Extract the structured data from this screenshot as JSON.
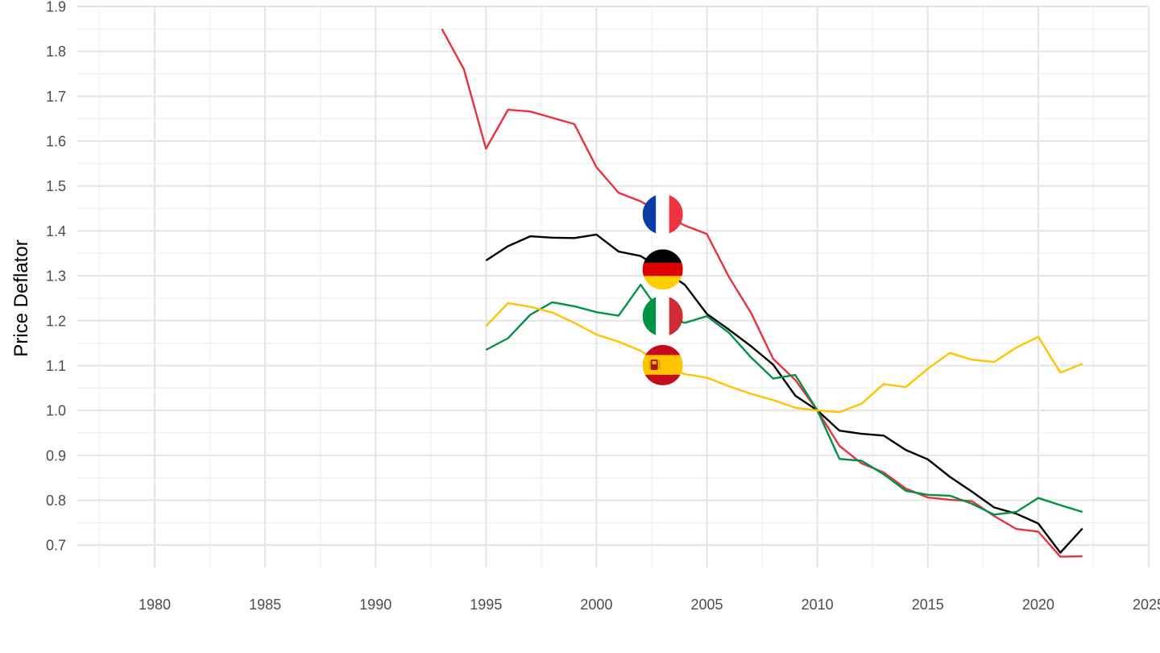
{
  "chart_data": {
    "type": "line",
    "title": "",
    "xlabel": "",
    "ylabel": "Price Deflator",
    "xlim": [
      1976.5,
      2025
    ],
    "ylim": [
      0.65,
      1.9
    ],
    "x_ticks": [
      1980,
      1985,
      1990,
      1995,
      2000,
      2005,
      2010,
      2015,
      2020,
      2025
    ],
    "y_ticks": [
      0.7,
      0.8,
      0.9,
      1.0,
      1.1,
      1.2,
      1.3,
      1.4,
      1.5,
      1.6,
      1.7,
      1.8,
      1.9
    ],
    "x_tick_labels": [
      "1980",
      "1985",
      "1990",
      "1995",
      "2000",
      "2005",
      "2010",
      "2015",
      "2020",
      "2025"
    ],
    "y_tick_labels": [
      "0.7",
      "0.8",
      "0.9",
      "1.0",
      "1.1",
      "1.2",
      "1.3",
      "1.4",
      "1.5",
      "1.6",
      "1.7",
      "1.8",
      "1.9"
    ],
    "grid": true,
    "legend": "flag markers at 2003",
    "series": [
      {
        "country": "France",
        "color": "#E8333F",
        "flag_year": 2003,
        "flag_value": 1.437,
        "points": [
          [
            1993,
            1.85
          ],
          [
            1994,
            1.76
          ],
          [
            1995,
            1.583
          ],
          [
            1996,
            1.67
          ],
          [
            1997,
            1.666
          ],
          [
            1998,
            1.652
          ],
          [
            1999,
            1.638
          ],
          [
            2000,
            1.542
          ],
          [
            2001,
            1.485
          ],
          [
            2002,
            1.466
          ],
          [
            2003,
            1.437
          ],
          [
            2004,
            1.412
          ],
          [
            2005,
            1.393
          ],
          [
            2006,
            1.297
          ],
          [
            2007,
            1.217
          ],
          [
            2008,
            1.115
          ],
          [
            2009,
            1.068
          ],
          [
            2010,
            1.0
          ],
          [
            2011,
            0.921
          ],
          [
            2012,
            0.882
          ],
          [
            2013,
            0.862
          ],
          [
            2014,
            0.826
          ],
          [
            2015,
            0.806
          ],
          [
            2016,
            0.801
          ],
          [
            2017,
            0.798
          ],
          [
            2018,
            0.765
          ],
          [
            2019,
            0.736
          ],
          [
            2020,
            0.73
          ],
          [
            2021,
            0.674
          ],
          [
            2022,
            0.675
          ]
        ]
      },
      {
        "country": "Germany",
        "color": "#000000",
        "flag_year": 2003,
        "flag_value": 1.314,
        "points": [
          [
            1995,
            1.334
          ],
          [
            1996,
            1.366
          ],
          [
            1997,
            1.388
          ],
          [
            1998,
            1.385
          ],
          [
            1999,
            1.384
          ],
          [
            2000,
            1.392
          ],
          [
            2001,
            1.354
          ],
          [
            2002,
            1.344
          ],
          [
            2003,
            1.314
          ],
          [
            2004,
            1.28
          ],
          [
            2005,
            1.215
          ],
          [
            2006,
            1.18
          ],
          [
            2007,
            1.143
          ],
          [
            2008,
            1.102
          ],
          [
            2009,
            1.033
          ],
          [
            2010,
            1.0
          ],
          [
            2011,
            0.955
          ],
          [
            2012,
            0.948
          ],
          [
            2013,
            0.944
          ],
          [
            2014,
            0.912
          ],
          [
            2015,
            0.891
          ],
          [
            2016,
            0.852
          ],
          [
            2017,
            0.819
          ],
          [
            2018,
            0.784
          ],
          [
            2019,
            0.77
          ],
          [
            2020,
            0.748
          ],
          [
            2021,
            0.683
          ],
          [
            2022,
            0.737
          ]
        ]
      },
      {
        "country": "Italy",
        "color": "#009246",
        "flag_year": 2003,
        "flag_value": 1.21,
        "points": [
          [
            1995,
            1.135
          ],
          [
            1996,
            1.161
          ],
          [
            1997,
            1.213
          ],
          [
            1998,
            1.241
          ],
          [
            1999,
            1.232
          ],
          [
            2000,
            1.219
          ],
          [
            2001,
            1.211
          ],
          [
            2002,
            1.28
          ],
          [
            2003,
            1.21
          ],
          [
            2004,
            1.195
          ],
          [
            2005,
            1.21
          ],
          [
            2006,
            1.173
          ],
          [
            2007,
            1.118
          ],
          [
            2008,
            1.071
          ],
          [
            2009,
            1.079
          ],
          [
            2010,
            1.0
          ],
          [
            2011,
            0.892
          ],
          [
            2012,
            0.888
          ],
          [
            2013,
            0.858
          ],
          [
            2014,
            0.821
          ],
          [
            2015,
            0.812
          ],
          [
            2016,
            0.81
          ],
          [
            2017,
            0.792
          ],
          [
            2018,
            0.768
          ],
          [
            2019,
            0.774
          ],
          [
            2020,
            0.805
          ],
          [
            2021,
            0.789
          ],
          [
            2022,
            0.774
          ]
        ]
      },
      {
        "country": "Spain",
        "color": "#FFC400",
        "flag_year": 2003,
        "flag_value": 1.101,
        "points": [
          [
            1995,
            1.188
          ],
          [
            1996,
            1.239
          ],
          [
            1997,
            1.231
          ],
          [
            1998,
            1.218
          ],
          [
            1999,
            1.195
          ],
          [
            2000,
            1.169
          ],
          [
            2001,
            1.153
          ],
          [
            2002,
            1.133
          ],
          [
            2003,
            1.101
          ],
          [
            2004,
            1.081
          ],
          [
            2005,
            1.073
          ],
          [
            2006,
            1.054
          ],
          [
            2007,
            1.037
          ],
          [
            2008,
            1.023
          ],
          [
            2009,
            1.006
          ],
          [
            2010,
            1.0
          ],
          [
            2011,
            0.996
          ],
          [
            2012,
            1.015
          ],
          [
            2013,
            1.059
          ],
          [
            2014,
            1.052
          ],
          [
            2015,
            1.093
          ],
          [
            2016,
            1.128
          ],
          [
            2017,
            1.113
          ],
          [
            2018,
            1.108
          ],
          [
            2019,
            1.14
          ],
          [
            2020,
            1.164
          ],
          [
            2021,
            1.084
          ],
          [
            2022,
            1.104
          ]
        ]
      }
    ]
  }
}
